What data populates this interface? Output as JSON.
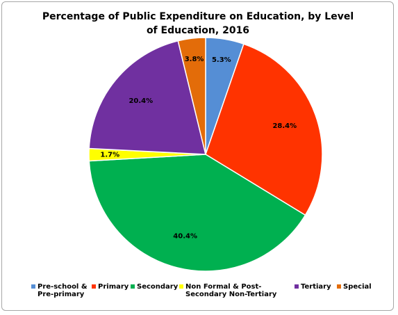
{
  "chart_data": {
    "type": "pie",
    "title": "Percentage of Public Expenditure on Education, by Level of Education, 2016",
    "start_angle": 0,
    "direction": "clockwise",
    "legend": "bottom",
    "series": [
      {
        "name": "Pre-school & Pre-primary",
        "color": "#558ed5",
        "values": [
          5.3
        ],
        "value_labels": [
          "5.3%"
        ]
      },
      {
        "name": "Primary",
        "color": "#ff3300",
        "values": [
          28.4
        ],
        "value_labels": [
          "28.4%"
        ]
      },
      {
        "name": "Secondary",
        "color": "#00b050",
        "values": [
          40.4
        ],
        "value_labels": [
          "40.4%"
        ]
      },
      {
        "name": "Non Formal & Post-Secondary Non-Tertiary",
        "color": "#ffff00",
        "values": [
          1.7
        ],
        "value_labels": [
          "1.7%"
        ]
      },
      {
        "name": "Tertiary",
        "color": "#7030a0",
        "values": [
          20.4
        ],
        "value_labels": [
          "20.4%"
        ]
      },
      {
        "name": "Special",
        "color": "#e36c09",
        "values": [
          3.8
        ],
        "value_labels": [
          "3.8%"
        ]
      }
    ]
  }
}
